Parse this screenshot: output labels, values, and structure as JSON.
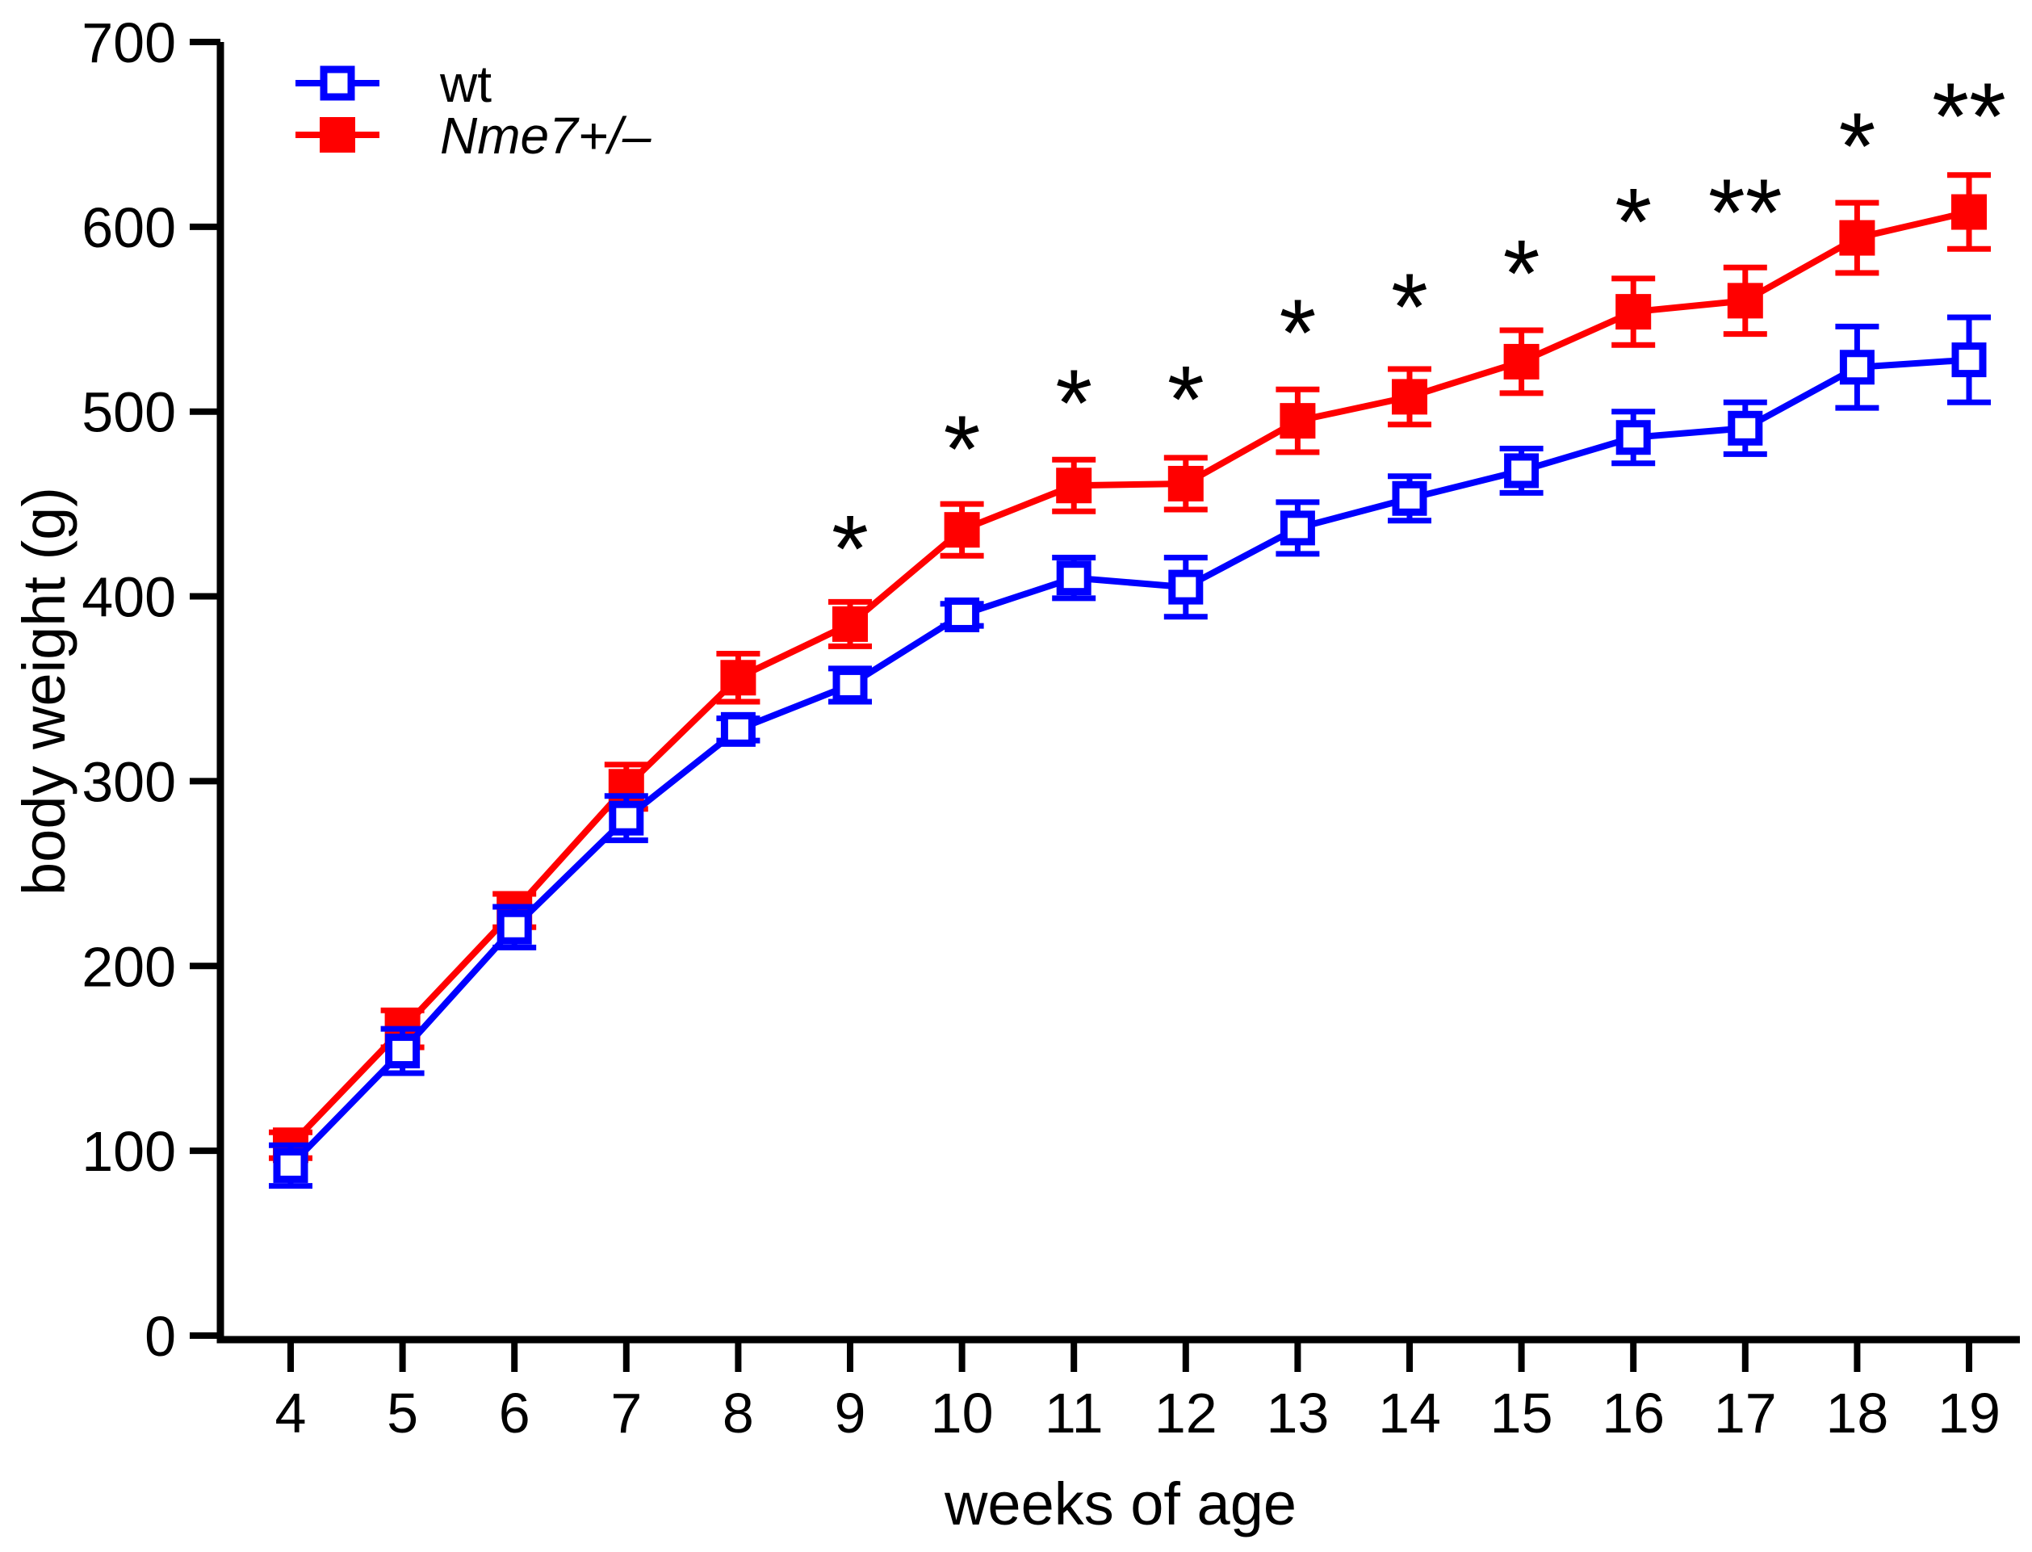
{
  "figure": {
    "background": "#ffffff",
    "axis_color": "#000000"
  },
  "chart_data": {
    "type": "line",
    "title": "",
    "xlabel": "weeks of age",
    "ylabel": "body weight (g)",
    "x": [
      4,
      5,
      6,
      7,
      8,
      9,
      10,
      11,
      12,
      13,
      14,
      15,
      16,
      17,
      18,
      19
    ],
    "xticks": [
      4,
      5,
      6,
      7,
      8,
      9,
      10,
      11,
      12,
      13,
      14,
      15,
      16,
      17,
      18,
      19
    ],
    "ylim": [
      0,
      700
    ],
    "yticks": [
      0,
      100,
      200,
      300,
      400,
      500,
      600,
      700
    ],
    "grid": false,
    "legend_position": "top-left-inside",
    "error_bars": "sem, symmetric, capped",
    "series": [
      {
        "name": "Nme7+/–",
        "color": "#ff0000",
        "marker": "filled-square",
        "italic_label": true,
        "values": [
          103,
          166,
          230,
          297,
          356,
          385,
          436,
          460,
          461,
          495,
          508,
          527,
          554,
          560,
          594,
          608
        ],
        "sem": [
          7,
          10,
          9,
          12,
          13,
          12,
          14,
          14,
          14,
          17,
          15,
          17,
          18,
          18,
          19,
          20
        ]
      },
      {
        "name": "wt",
        "color": "#0000ff",
        "marker": "open-square",
        "italic_label": false,
        "values": [
          92,
          154,
          221,
          280,
          328,
          352,
          390,
          410,
          405,
          437,
          453,
          468,
          486,
          491,
          524,
          528
        ],
        "sem": [
          11,
          12,
          11,
          12,
          6,
          9,
          6,
          11,
          16,
          14,
          12,
          12,
          14,
          14,
          22,
          23
        ]
      }
    ],
    "significance": [
      {
        "week": 9,
        "text": "*",
        "y_g": 436
      },
      {
        "week": 10,
        "text": "*",
        "y_g": 490
      },
      {
        "week": 11,
        "text": "*",
        "y_g": 515
      },
      {
        "week": 12,
        "text": "*",
        "y_g": 517
      },
      {
        "week": 13,
        "text": "*",
        "y_g": 553
      },
      {
        "week": 14,
        "text": "*",
        "y_g": 567
      },
      {
        "week": 15,
        "text": "*",
        "y_g": 585
      },
      {
        "week": 16,
        "text": "*",
        "y_g": 613
      },
      {
        "week": 17,
        "text": "**",
        "y_g": 618
      },
      {
        "week": 18,
        "text": "*",
        "y_g": 654
      },
      {
        "week": 19,
        "text": "**",
        "y_g": 670
      }
    ],
    "legend": [
      {
        "label": "wt",
        "color": "#0000ff",
        "marker": "open-square"
      },
      {
        "label": "Nme7+/–",
        "color": "#ff0000",
        "marker": "filled-square"
      }
    ]
  }
}
